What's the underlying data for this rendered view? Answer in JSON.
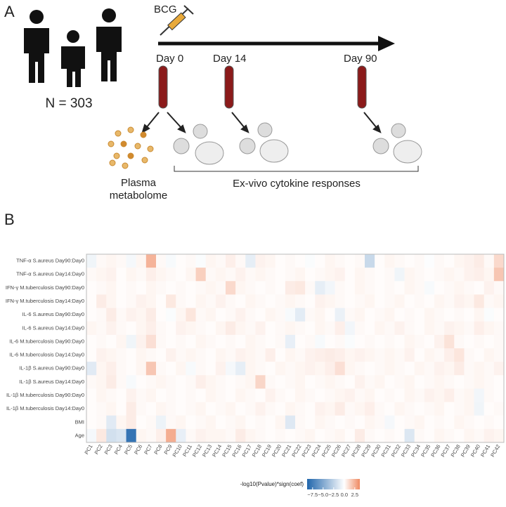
{
  "panel_a": {
    "label": "A",
    "vaccine": "BCG",
    "days": [
      "Day 0",
      "Day 14",
      "Day 90"
    ],
    "cohort": "N = 303",
    "plasma": [
      "Plasma",
      "metabolome"
    ],
    "cytokine": "Ex-vivo cytokine responses"
  },
  "chart_data": {
    "type": "heatmap",
    "panel_label": "B",
    "y_categories": [
      "TNF-α S.aureus Day90:Day0",
      "TNF-α S.aureus Day14:Day0",
      "IFN-γ M.tuberculosis Day90:Day0",
      "IFN-γ M.tuberculosis Day14:Day0",
      "IL-6 S.aureus Day90:Day0",
      "IL-6 S.aureus Day14:Day0",
      "IL-6 M.tuberculosis Day90:Day0",
      "IL-6 M.tuberculosis Day14:Day0",
      "IL-1β S.aureus Day90:Day0",
      "IL-1β S.aureus Day14:Day0",
      "IL-1β M.tuberculosis Day90:Day0",
      "IL-1β M.tuberculosis Day14:Day0",
      "BMI",
      "Age"
    ],
    "x_categories": [
      "PC1",
      "PC2",
      "PC3",
      "PC4",
      "PC5",
      "PC6",
      "PC7",
      "PC8",
      "PC9",
      "PC10",
      "PC11",
      "PC12",
      "PC13",
      "PC14",
      "PC15",
      "PC16",
      "PC17",
      "PC18",
      "PC19",
      "PC20",
      "PC21",
      "PC22",
      "PC23",
      "PC24",
      "PC25",
      "PC26",
      "PC27",
      "PC28",
      "PC29",
      "PC30",
      "PC31",
      "PC32",
      "PC33",
      "PC34",
      "PC35",
      "PC36",
      "PC37",
      "PC38",
      "PC39",
      "PC40",
      "PC41",
      "PC42"
    ],
    "values": [
      [
        -0.6,
        0.2,
        0.3,
        0.2,
        -0.4,
        0.3,
        2.4,
        0.2,
        -0.3,
        0.1,
        0.2,
        -0.2,
        0.3,
        0.2,
        0.5,
        0.2,
        -1.0,
        0.4,
        0.3,
        0.1,
        0.2,
        0.1,
        -0.2,
        0.1,
        0.3,
        0.2,
        0.1,
        0.2,
        -2.2,
        0.1,
        0.3,
        0.2,
        0.1,
        0.2,
        -0.1,
        0.2,
        0.1,
        0.3,
        0.4,
        0.6,
        0.2,
        1.2
      ],
      [
        0.2,
        0.3,
        0.4,
        0.1,
        0.3,
        0.2,
        0.5,
        0.3,
        0.2,
        0.1,
        0.3,
        1.5,
        0.2,
        0.3,
        0.2,
        0.4,
        0.2,
        0.3,
        0.2,
        0.1,
        0.2,
        0.3,
        0.1,
        0.2,
        0.3,
        0.4,
        0.1,
        0.3,
        0.2,
        0.1,
        0.2,
        -0.6,
        0.3,
        0.2,
        0.1,
        0.2,
        0.3,
        0.2,
        0.4,
        0.5,
        0.3,
        1.8
      ],
      [
        0.1,
        0.2,
        0.3,
        0.1,
        0.2,
        0.1,
        0.3,
        0.2,
        0.1,
        0.2,
        0.1,
        0.2,
        0.3,
        0.2,
        1.2,
        0.3,
        0.2,
        0.1,
        0.2,
        0.1,
        0.6,
        0.7,
        0.2,
        -1.0,
        -0.5,
        0.2,
        0.1,
        0.3,
        0.2,
        0.1,
        0.2,
        0.1,
        0.3,
        0.2,
        -0.3,
        0.1,
        0.2,
        0.3,
        0.2,
        0.1,
        0.4,
        0.2
      ],
      [
        0.1,
        0.6,
        0.3,
        0.1,
        0.2,
        0.4,
        0.3,
        0.1,
        0.7,
        0.2,
        0.1,
        0.3,
        0.2,
        0.4,
        0.2,
        0.1,
        0.3,
        0.2,
        0.1,
        0.2,
        0.3,
        0.2,
        0.1,
        0.4,
        0.3,
        0.2,
        0.1,
        0.2,
        0.3,
        0.1,
        0.2,
        0.3,
        0.1,
        0.2,
        0.1,
        0.3,
        0.2,
        0.4,
        0.3,
        0.7,
        0.2,
        0.3
      ],
      [
        0.1,
        0.2,
        0.6,
        0.2,
        0.4,
        0.3,
        0.6,
        0.1,
        -0.2,
        0.3,
        0.8,
        0.2,
        0.3,
        0.1,
        0.2,
        0.4,
        0.2,
        0.1,
        0.3,
        0.2,
        -0.3,
        -1.1,
        0.2,
        0.3,
        0.1,
        -0.8,
        0.2,
        0.3,
        0.1,
        0.2,
        0.3,
        0.1,
        0.2,
        0.1,
        0.3,
        0.2,
        0.1,
        0.2,
        0.1,
        0.3,
        -0.2,
        0.1
      ],
      [
        0.3,
        0.2,
        0.4,
        0.2,
        0.1,
        0.3,
        0.5,
        0.2,
        0.1,
        0.4,
        0.3,
        0.2,
        0.1,
        0.3,
        0.6,
        0.3,
        0.2,
        0.4,
        0.1,
        0.2,
        0.3,
        0.2,
        0.1,
        0.3,
        0.2,
        0.5,
        -0.5,
        0.2,
        0.1,
        0.3,
        0.2,
        0.4,
        0.2,
        0.1,
        0.3,
        0.2,
        0.4,
        0.3,
        0.2,
        0.5,
        0.3,
        0.2
      ],
      [
        0.1,
        0.2,
        0.1,
        0.3,
        -0.6,
        0.4,
        1.0,
        0.2,
        0.1,
        0.2,
        0.1,
        0.3,
        0.2,
        0.1,
        0.2,
        0.1,
        0.3,
        0.2,
        0.1,
        0.2,
        -0.9,
        0.1,
        0.2,
        -0.3,
        0.1,
        0.2,
        -0.2,
        0.1,
        0.2,
        0.1,
        0.2,
        0.1,
        0.3,
        0.2,
        0.1,
        0.4,
        0.9,
        0.2,
        0.1,
        0.2,
        0.1,
        0.2
      ],
      [
        0.1,
        0.4,
        0.3,
        0.2,
        0.1,
        0.3,
        0.2,
        0.1,
        0.4,
        0.2,
        0.3,
        0.2,
        0.1,
        0.3,
        0.2,
        0.4,
        0.3,
        0.2,
        0.5,
        0.1,
        0.3,
        0.2,
        0.4,
        0.5,
        0.6,
        0.5,
        0.3,
        0.4,
        0.3,
        0.2,
        0.3,
        0.2,
        0.4,
        0.1,
        0.3,
        0.2,
        0.5,
        0.8,
        0.2,
        0.1,
        0.3,
        0.2
      ],
      [
        -1.2,
        0.3,
        0.5,
        0.2,
        0.1,
        0.3,
        1.8,
        0.2,
        0.1,
        0.3,
        -0.3,
        0.2,
        0.1,
        0.4,
        -0.4,
        -1.0,
        0.3,
        0.2,
        0.1,
        0.3,
        0.2,
        0.3,
        0.4,
        0.3,
        0.5,
        1.0,
        0.3,
        0.2,
        0.1,
        0.2,
        0.3,
        0.2,
        0.1,
        0.3,
        0.2,
        0.4,
        0.3,
        0.6,
        0.2,
        0.3,
        0.2,
        0.4
      ],
      [
        0.2,
        0.3,
        0.6,
        0.2,
        -0.3,
        0.1,
        0.2,
        0.3,
        0.2,
        0.1,
        0.2,
        0.5,
        0.3,
        0.2,
        0.1,
        0.2,
        0.3,
        1.3,
        0.2,
        0.1,
        0.2,
        0.3,
        0.1,
        0.2,
        0.3,
        0.2,
        0.1,
        0.4,
        0.2,
        0.3,
        0.1,
        0.2,
        0.3,
        0.1,
        0.2,
        0.3,
        0.2,
        0.1,
        0.2,
        0.3,
        0.2,
        0.1
      ],
      [
        0.1,
        0.3,
        0.2,
        0.1,
        0.4,
        0.2,
        0.3,
        0.1,
        0.2,
        0.1,
        0.2,
        0.1,
        0.3,
        0.2,
        0.1,
        0.3,
        0.2,
        0.1,
        0.4,
        0.2,
        0.1,
        0.3,
        0.2,
        0.1,
        0.2,
        0.3,
        0.4,
        0.2,
        0.3,
        0.1,
        0.2,
        0.1,
        0.3,
        0.2,
        0.4,
        0.3,
        0.5,
        0.2,
        0.3,
        -0.5,
        0.2,
        0.1
      ],
      [
        0.1,
        0.2,
        0.3,
        0.1,
        0.6,
        0.2,
        0.1,
        0.3,
        0.2,
        0.1,
        0.2,
        0.3,
        0.1,
        0.2,
        0.3,
        0.1,
        0.2,
        0.4,
        0.2,
        0.1,
        0.3,
        0.2,
        0.1,
        0.4,
        0.3,
        0.6,
        0.2,
        0.3,
        0.5,
        0.2,
        0.1,
        0.3,
        0.2,
        0.1,
        0.2,
        0.3,
        0.1,
        0.2,
        0.3,
        -0.6,
        0.1,
        0.2
      ],
      [
        0.1,
        0.2,
        -1.2,
        0.3,
        0.6,
        0.1,
        0.2,
        -0.7,
        0.2,
        0.3,
        0.1,
        0.2,
        0.3,
        0.1,
        0.2,
        0.3,
        0.1,
        0.2,
        0.1,
        0.3,
        -1.3,
        0.2,
        0.1,
        0.3,
        0.2,
        0.1,
        0.2,
        0.1,
        0.3,
        0.2,
        -0.4,
        0.1,
        0.2,
        0.3,
        0.1,
        0.2,
        0.1,
        0.3,
        0.2,
        0.1,
        0.2,
        0.1
      ],
      [
        -0.4,
        0.7,
        -1.8,
        -1.5,
        -8.0,
        0.3,
        0.2,
        0.5,
        2.6,
        -0.9,
        0.2,
        0.4,
        0.3,
        0.3,
        0.2,
        0.6,
        0.3,
        0.2,
        0.1,
        0.2,
        0.1,
        0.2,
        0.3,
        0.1,
        0.2,
        0.3,
        0.1,
        0.6,
        0.2,
        0.1,
        0.2,
        0.1,
        -1.4,
        0.2,
        0.1,
        0.3,
        0.2,
        0.1,
        0.3,
        0.2,
        0.4,
        0.3
      ]
    ],
    "colorbar_label": "-log10(Pvalue)*sign(coef)",
    "zlim": [
      -8.8,
      3.7
    ],
    "zticks": [
      {
        "value": -7.5,
        "label": "−7.5"
      },
      {
        "value": -5,
        "label": "−5.0"
      },
      {
        "value": -2.5,
        "label": "−2.5"
      },
      {
        "value": 0,
        "label": "0.0"
      },
      2.5
    ],
    "colors": [
      "#2166ac",
      "#ffffff",
      "#ef8a62"
    ]
  }
}
